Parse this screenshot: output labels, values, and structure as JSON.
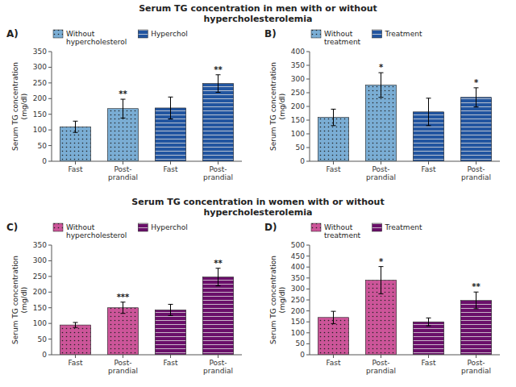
{
  "chart_data": [
    {
      "type": "bar",
      "title": "Serum TG concentration in men with or without\nhypercholesterolemia",
      "annotations": [
        "A)"
      ],
      "categories": [
        "Fast",
        "Post-\nprandial",
        "Fast",
        "Post-\nprandial"
      ],
      "ylabel": "Serum TG concentration\n(mg/dl)",
      "ylim": [
        0,
        350
      ],
      "yticks": [
        0,
        50,
        100,
        150,
        200,
        250,
        300,
        350
      ],
      "grid": false,
      "legend": "upper left",
      "series": [
        {
          "name": "Without\nhypercholesterol",
          "color": "#7aadd4",
          "values": [
            110,
            168,
            null,
            null
          ],
          "errors": [
            18,
            30,
            null,
            null
          ],
          "annotations": [
            null,
            "**",
            null,
            null
          ]
        },
        {
          "name": "Hyperchol",
          "color": "#2255a0",
          "values": [
            null,
            null,
            170,
            248
          ],
          "errors": [
            null,
            null,
            35,
            28
          ],
          "annotations": [
            null,
            null,
            null,
            "**"
          ]
        }
      ]
    },
    {
      "type": "bar",
      "annotations": [
        "B)"
      ],
      "categories": [
        "Fast",
        "Post-\nprandial",
        "Fast",
        "Post-\nprandial"
      ],
      "ylabel": "Serum TG concentration\n(mg/dl)",
      "ylim": [
        0,
        400
      ],
      "yticks": [
        0,
        50,
        100,
        150,
        200,
        250,
        300,
        350,
        400
      ],
      "grid": false,
      "legend": "upper left",
      "series": [
        {
          "name": "Without\ntreatment",
          "color": "#7aadd4",
          "values": [
            160,
            278,
            null,
            null
          ],
          "errors": [
            30,
            45,
            null,
            null
          ],
          "annotations": [
            null,
            "*",
            null,
            null
          ]
        },
        {
          "name": "Treatment",
          "color": "#2255a0",
          "values": [
            null,
            null,
            180,
            233
          ],
          "errors": [
            null,
            null,
            50,
            35
          ],
          "annotations": [
            null,
            null,
            null,
            "*"
          ]
        }
      ]
    },
    {
      "type": "bar",
      "title": "Serum TG concentration in women with or without\nhypercholesterolemia",
      "annotations": [
        "C)"
      ],
      "categories": [
        "Fast",
        "Post-\nprandial",
        "Fast",
        "Post-\nprandial"
      ],
      "ylabel": "Serum TG concentration\n(mg/dl)",
      "ylim": [
        0,
        350
      ],
      "yticks": [
        0,
        50,
        100,
        150,
        200,
        250,
        300,
        350
      ],
      "grid": false,
      "legend": "upper left",
      "series": [
        {
          "name": "Without\nhypercholesterol",
          "color": "#cc5599",
          "values": [
            95,
            150,
            null,
            null
          ],
          "errors": [
            8,
            18,
            null,
            null
          ],
          "annotations": [
            null,
            "***",
            null,
            null
          ]
        },
        {
          "name": "Hyperchol",
          "color": "#6a0f6a",
          "values": [
            null,
            null,
            143,
            248
          ],
          "errors": [
            null,
            null,
            18,
            28
          ],
          "annotations": [
            null,
            null,
            null,
            "**"
          ]
        }
      ]
    },
    {
      "type": "bar",
      "annotations": [
        "D)"
      ],
      "categories": [
        "Fast",
        "Post-\nprandial",
        "Fast",
        "Post-\nprandial"
      ],
      "ylabel": "Serum TG concentration\n(mg/dl)",
      "ylim": [
        0,
        500
      ],
      "yticks": [
        0,
        50,
        100,
        150,
        200,
        250,
        300,
        350,
        400,
        450,
        500
      ],
      "grid": false,
      "legend": "upper left",
      "series": [
        {
          "name": "Without\ntreatment",
          "color": "#cc5599",
          "values": [
            170,
            340,
            null,
            null
          ],
          "errors": [
            28,
            62,
            null,
            null
          ],
          "annotations": [
            null,
            "*",
            null,
            null
          ]
        },
        {
          "name": "Treatment",
          "color": "#6a0f6a",
          "values": [
            null,
            null,
            150,
            248
          ],
          "errors": [
            null,
            null,
            18,
            38
          ],
          "annotations": [
            null,
            null,
            null,
            "**"
          ]
        }
      ]
    }
  ]
}
